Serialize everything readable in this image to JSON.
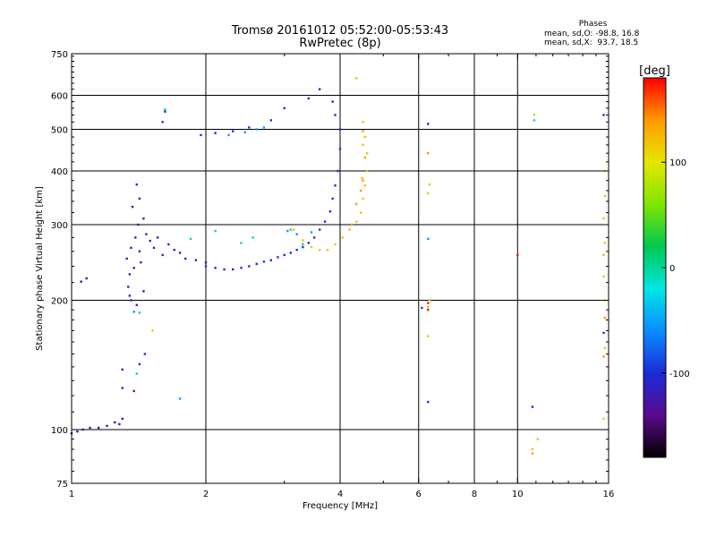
{
  "header": {
    "title_line1": "Tromsø 20161012 05:52:00-05:53:43",
    "title_line2": "RwPretec (8p)",
    "phases_label": "Phases",
    "phase_o": "mean, sd,O: -98.8, 16.8",
    "phase_x": "mean, sd,X:  93.7, 18.5"
  },
  "chart_data": {
    "type": "scatter",
    "xlabel": "Frequency [MHz]",
    "ylabel": "Stationary phase Virtual Height [km]",
    "x_scale": "log",
    "y_scale": "log",
    "xlim": [
      1,
      16
    ],
    "ylim": [
      75,
      750
    ],
    "x_ticks": [
      1,
      2,
      4,
      6,
      8,
      10,
      16
    ],
    "y_ticks": [
      75,
      100,
      200,
      300,
      400,
      500,
      600,
      750
    ],
    "grid": true,
    "colorbar": {
      "label": "[deg]",
      "range": [
        -180,
        180
      ],
      "ticks": [
        100,
        0,
        -100
      ],
      "colors": [
        "#000000",
        "#5a0a8c",
        "#1a2bd8",
        "#0a8cff",
        "#00e6e6",
        "#00c850",
        "#7fe600",
        "#e6e600",
        "#ff9900",
        "#ff0000"
      ]
    },
    "series": [
      {
        "color": "#3a1aa8",
        "points": [
          [
            1.0,
            98
          ],
          [
            1.03,
            99
          ],
          [
            1.06,
            100
          ],
          [
            1.1,
            101
          ],
          [
            1.15,
            101
          ],
          [
            1.2,
            102
          ],
          [
            1.25,
            104
          ],
          [
            1.28,
            103
          ],
          [
            1.3,
            106
          ],
          [
            1.05,
            221
          ],
          [
            1.08,
            225
          ]
        ]
      },
      {
        "color": "#4a1aa8",
        "points": [
          [
            1.33,
            250
          ],
          [
            1.34,
            215
          ],
          [
            1.35,
            205
          ],
          [
            1.36,
            265
          ],
          [
            1.37,
            330
          ],
          [
            1.38,
            238
          ],
          [
            1.39,
            280
          ],
          [
            1.4,
            372
          ],
          [
            1.41,
            300
          ],
          [
            1.42,
            260
          ],
          [
            1.43,
            245
          ],
          [
            1.45,
            310
          ],
          [
            1.47,
            285
          ],
          [
            1.5,
            275
          ],
          [
            1.53,
            265
          ],
          [
            1.56,
            280
          ],
          [
            1.6,
            255
          ],
          [
            1.65,
            270
          ],
          [
            1.7,
            262
          ],
          [
            1.75,
            258
          ],
          [
            1.8,
            250
          ],
          [
            1.9,
            248
          ],
          [
            2.0,
            245
          ],
          [
            1.36,
            200
          ],
          [
            1.4,
            195
          ],
          [
            1.45,
            210
          ],
          [
            1.35,
            230
          ],
          [
            1.42,
            345
          ]
        ]
      },
      {
        "color": "#1f2fd8",
        "points": [
          [
            2.0,
            240
          ],
          [
            2.1,
            238
          ],
          [
            2.2,
            236
          ],
          [
            2.3,
            236
          ],
          [
            2.4,
            238
          ],
          [
            2.5,
            240
          ],
          [
            2.6,
            243
          ],
          [
            2.7,
            246
          ],
          [
            2.8,
            248
          ],
          [
            2.9,
            252
          ],
          [
            3.0,
            255
          ],
          [
            3.1,
            258
          ],
          [
            3.2,
            262
          ],
          [
            3.3,
            266
          ],
          [
            3.4,
            272
          ],
          [
            3.5,
            280
          ],
          [
            3.6,
            292
          ],
          [
            3.7,
            305
          ],
          [
            3.8,
            322
          ],
          [
            3.85,
            345
          ],
          [
            3.9,
            370
          ],
          [
            3.95,
            400
          ],
          [
            4.0,
            450
          ],
          [
            4.0,
            500
          ],
          [
            3.9,
            540
          ],
          [
            3.85,
            580
          ],
          [
            3.6,
            620
          ],
          [
            3.4,
            590
          ],
          [
            3.0,
            560
          ],
          [
            2.8,
            525
          ],
          [
            2.5,
            505
          ],
          [
            2.3,
            495
          ],
          [
            2.1,
            490
          ],
          [
            1.95,
            485
          ],
          [
            1.6,
            520
          ],
          [
            1.62,
            550
          ],
          [
            1.3,
            125
          ],
          [
            1.38,
            123
          ],
          [
            1.42,
            142
          ],
          [
            1.46,
            150
          ],
          [
            1.3,
            138
          ],
          [
            6.1,
            192
          ],
          [
            6.3,
            116
          ],
          [
            6.3,
            515
          ],
          [
            10.8,
            113
          ],
          [
            15.6,
            540
          ],
          [
            15.6,
            168
          ]
        ]
      },
      {
        "color": "#1e90ff",
        "points": [
          [
            2.25,
            485
          ],
          [
            2.45,
            492
          ],
          [
            2.6,
            500
          ],
          [
            2.7,
            505
          ],
          [
            3.05,
            290
          ],
          [
            3.2,
            285
          ],
          [
            3.45,
            288
          ],
          [
            6.3,
            278
          ],
          [
            1.75,
            118
          ],
          [
            1.38,
            188
          ]
        ]
      },
      {
        "color": "#00d4c8",
        "points": [
          [
            1.85,
            278
          ],
          [
            2.1,
            290
          ],
          [
            2.4,
            272
          ],
          [
            2.55,
            280
          ],
          [
            3.1,
            292
          ],
          [
            3.3,
            270
          ],
          [
            1.4,
            135
          ],
          [
            1.42,
            187
          ],
          [
            10.9,
            525
          ],
          [
            1.62,
            556
          ]
        ]
      },
      {
        "color": "#e6c800",
        "points": [
          [
            3.15,
            292
          ],
          [
            3.3,
            276
          ],
          [
            3.45,
            266
          ],
          [
            3.6,
            262
          ],
          [
            3.75,
            262
          ],
          [
            3.9,
            270
          ],
          [
            4.05,
            280
          ],
          [
            4.2,
            292
          ],
          [
            4.35,
            305
          ],
          [
            4.45,
            320
          ],
          [
            4.5,
            345
          ],
          [
            4.55,
            370
          ],
          [
            4.6,
            400
          ],
          [
            4.6,
            440
          ],
          [
            4.55,
            480
          ],
          [
            4.5,
            520
          ],
          [
            4.5,
            460
          ],
          [
            4.48,
            385
          ],
          [
            1.52,
            170
          ],
          [
            15.6,
            400
          ],
          [
            15.7,
            350
          ],
          [
            15.6,
            310
          ],
          [
            15.7,
            272
          ],
          [
            15.6,
            255
          ],
          [
            15.6,
            227
          ],
          [
            15.6,
            200
          ],
          [
            15.7,
            155
          ],
          [
            15.6,
            106
          ],
          [
            6.35,
            372
          ],
          [
            6.3,
            355
          ],
          [
            6.35,
            200
          ],
          [
            6.3,
            165
          ],
          [
            10.9,
            541
          ],
          [
            10.8,
            90
          ],
          [
            11.1,
            95
          ],
          [
            4.35,
            658
          ]
        ]
      },
      {
        "color": "#ff9a00",
        "points": [
          [
            4.25,
            300
          ],
          [
            4.35,
            335
          ],
          [
            4.45,
            360
          ],
          [
            4.5,
            380
          ],
          [
            4.55,
            430
          ],
          [
            4.5,
            495
          ],
          [
            6.3,
            440
          ],
          [
            6.3,
            193
          ],
          [
            15.6,
            148
          ],
          [
            15.7,
            182
          ],
          [
            10.8,
            88
          ]
        ]
      },
      {
        "color": "#e81e00",
        "points": [
          [
            6.3,
            190
          ],
          [
            10.0,
            255
          ],
          [
            6.3,
            197
          ]
        ]
      }
    ]
  }
}
